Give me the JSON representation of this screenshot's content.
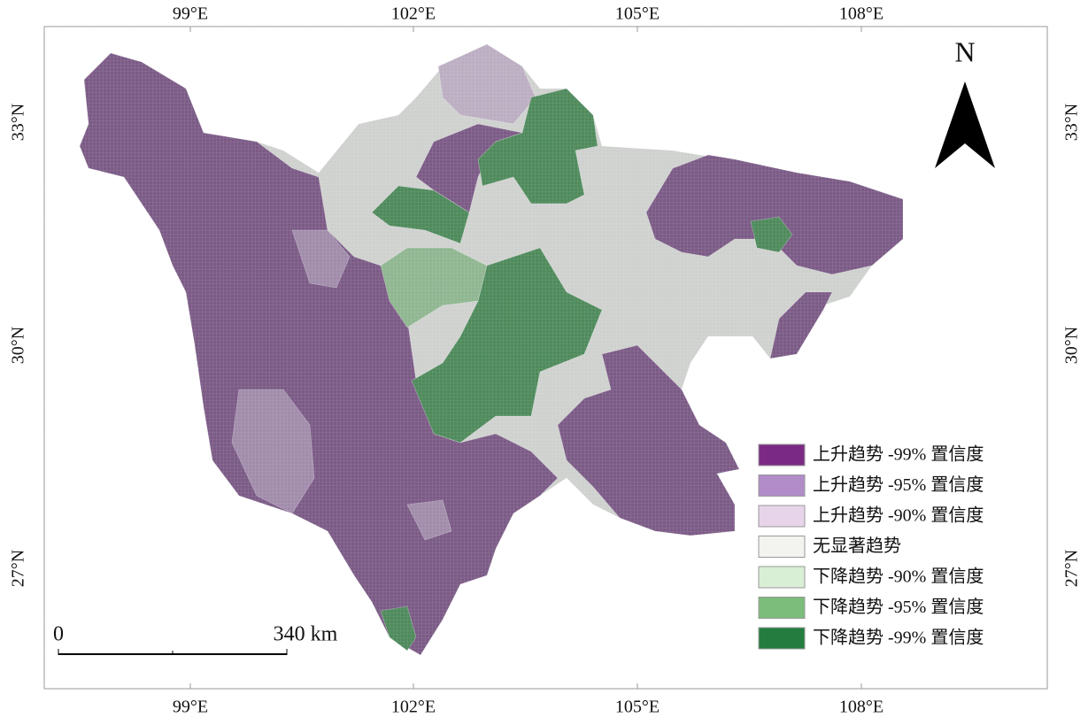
{
  "map": {
    "lon_labels": [
      "99°E",
      "102°E",
      "105°E",
      "108°E"
    ],
    "lat_labels": [
      "33°N",
      "30°N",
      "27°N"
    ],
    "north": "N",
    "scale_bar": {
      "start": "0",
      "end": "340 km"
    },
    "legend": [
      {
        "label": "上升趋势 -99% 置信度",
        "color": "#7b2a83"
      },
      {
        "label": "上升趋势 -95% 置信度",
        "color": "#b18cc8"
      },
      {
        "label": "上升趋势 -90% 置信度",
        "color": "#e7d4ea"
      },
      {
        "label": "无显著趋势",
        "color": "#f3f4ef"
      },
      {
        "label": "下降趋势 -90% 置信度",
        "color": "#d9efd5"
      },
      {
        "label": "下降趋势 -95% 置信度",
        "color": "#7cbd7b"
      },
      {
        "label": "下降趋势 -99% 置信度",
        "color": "#247d3f"
      }
    ]
  }
}
